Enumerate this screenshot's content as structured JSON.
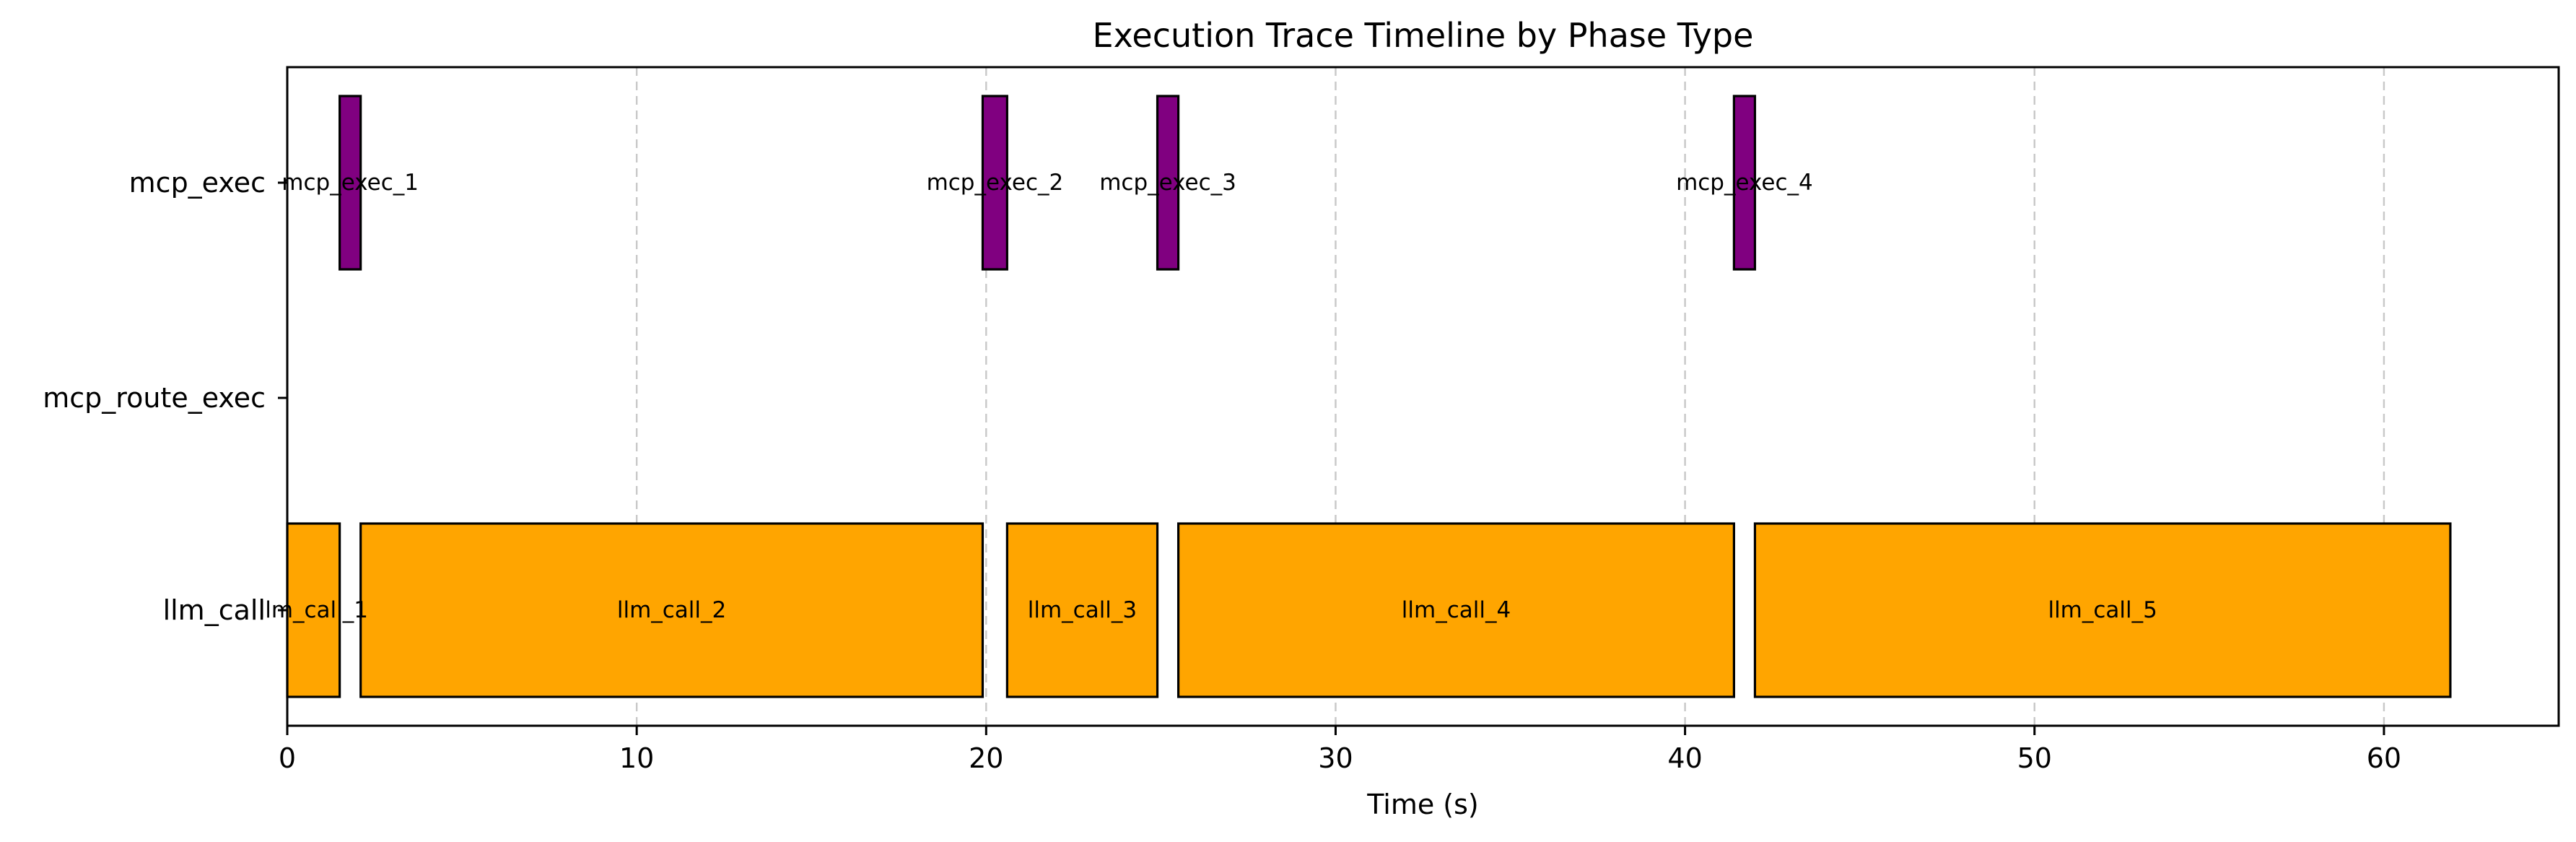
{
  "chart_data": {
    "type": "gantt",
    "title": "Execution Trace Timeline by Phase Type",
    "xlabel": "Time (s)",
    "ylabel": "",
    "xlim": [
      0,
      65
    ],
    "xticks": [
      0,
      10,
      20,
      30,
      40,
      50,
      60
    ],
    "grid": "x-dashed",
    "categories": [
      "llm_call",
      "mcp_route_exec",
      "mcp_exec"
    ],
    "colors": {
      "llm_call": "#FFA500",
      "mcp_exec": "#800080",
      "mcp_route_exec": "#FFA500"
    },
    "segments": [
      {
        "label": "llm_call_1",
        "category": "llm_call",
        "start": 0.0,
        "end": 1.5
      },
      {
        "label": "llm_call_2",
        "category": "llm_call",
        "start": 2.1,
        "end": 19.9
      },
      {
        "label": "llm_call_3",
        "category": "llm_call",
        "start": 20.6,
        "end": 24.9
      },
      {
        "label": "llm_call_4",
        "category": "llm_call",
        "start": 25.5,
        "end": 41.4
      },
      {
        "label": "llm_call_5",
        "category": "llm_call",
        "start": 42.0,
        "end": 61.9
      },
      {
        "label": "mcp_exec_1",
        "category": "mcp_exec",
        "start": 1.5,
        "end": 2.1
      },
      {
        "label": "mcp_exec_2",
        "category": "mcp_exec",
        "start": 19.9,
        "end": 20.6
      },
      {
        "label": "mcp_exec_3",
        "category": "mcp_exec",
        "start": 24.9,
        "end": 25.5
      },
      {
        "label": "mcp_exec_4",
        "category": "mcp_exec",
        "start": 41.4,
        "end": 42.0
      }
    ]
  }
}
